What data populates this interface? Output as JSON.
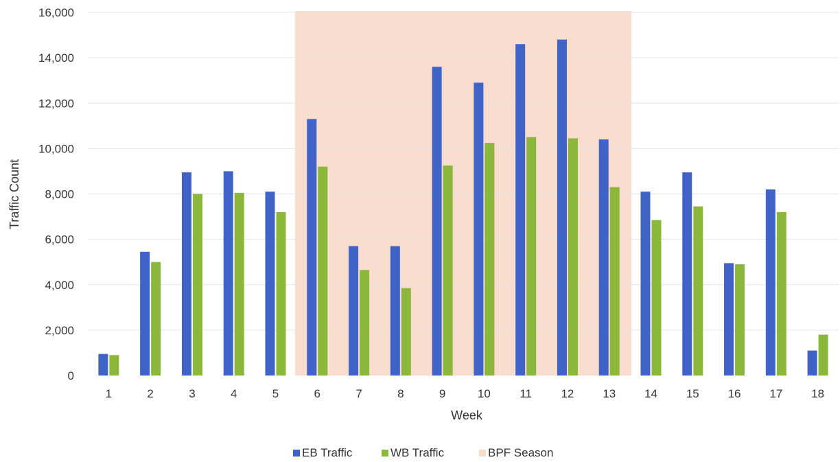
{
  "chart_data": {
    "type": "bar",
    "title": "",
    "xlabel": "Week",
    "ylabel": "Traffic Count",
    "categories": [
      "1",
      "2",
      "3",
      "4",
      "5",
      "6",
      "7",
      "8",
      "9",
      "10",
      "11",
      "12",
      "13",
      "14",
      "15",
      "16",
      "17",
      "18"
    ],
    "series": [
      {
        "name": "EB Traffic",
        "color": "#3f63c6",
        "values": [
          950,
          5450,
          8950,
          9000,
          8100,
          11300,
          5700,
          5700,
          13600,
          12900,
          14600,
          14800,
          10400,
          8100,
          8950,
          4950,
          8200,
          1100
        ]
      },
      {
        "name": "WB Traffic",
        "color": "#8bb83a",
        "values": [
          900,
          5000,
          8000,
          8050,
          7200,
          9200,
          4650,
          3850,
          9250,
          10250,
          10500,
          10450,
          8300,
          6850,
          7450,
          4900,
          7200,
          1800
        ]
      }
    ],
    "highlight": {
      "name": "BPF Season",
      "from": "6",
      "to": "13",
      "color": "#f8dccd"
    },
    "ylim": [
      0,
      16000
    ],
    "yticks": [
      "0",
      "2,000",
      "4,000",
      "6,000",
      "8,000",
      "10,000",
      "12,000",
      "14,000",
      "16,000"
    ],
    "ytick_values": [
      0,
      2000,
      4000,
      6000,
      8000,
      10000,
      12000,
      14000,
      16000
    ],
    "grid": true,
    "legend_position": "bottom"
  }
}
